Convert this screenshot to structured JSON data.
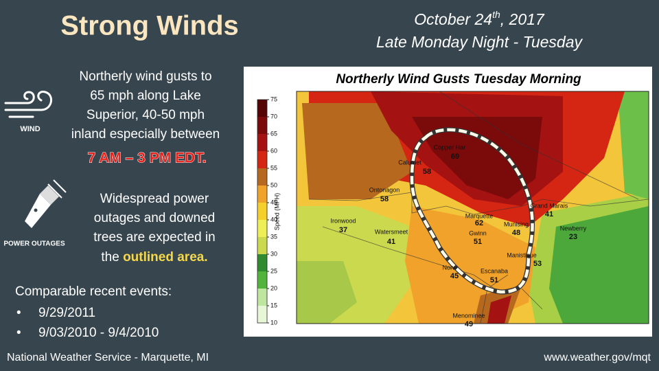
{
  "header": {
    "title": "Strong Winds",
    "date": {
      "main": "October 24",
      "suffix": "th",
      "year": ", 2017"
    },
    "subtitle": "Late Monday Night - Tuesday"
  },
  "wind": {
    "icon_label": "WIND",
    "lines": [
      "Northerly wind gusts to",
      "65 mph along Lake",
      "Superior, 40-50 mph",
      "inland especially between"
    ],
    "highlight": "7 AM – 3 PM EDT."
  },
  "outages": {
    "icon_label": "POWER OUTAGES",
    "lines": [
      "Widespread power",
      "outages and downed",
      "trees are expected in",
      "the "
    ],
    "highlight": "outlined area."
  },
  "events": {
    "heading": "Comparable recent events:",
    "items": [
      "9/29/2011",
      "9/03/2010 - 9/4/2010"
    ]
  },
  "map": {
    "title": "Northerly Wind Gusts Tuesday Morning",
    "colorbar": {
      "label": "Speed (MPH)",
      "ticks": [
        10,
        15,
        20,
        25,
        30,
        35,
        40,
        45,
        50,
        55,
        60,
        65,
        70,
        75
      ],
      "colors": [
        "#e8f6d8",
        "#bfe6a0",
        "#52b43a",
        "#2f8a30",
        "#cbd94e",
        "#eeee55",
        "#f5cf2a",
        "#f0a22a",
        "#b5681e",
        "#d42612",
        "#a51212",
        "#7b0a0a",
        "#560505"
      ]
    },
    "cities": [
      {
        "name": "Copper Har",
        "value": 69
      },
      {
        "name": "Calumet",
        "value": 58
      },
      {
        "name": "Ontonagon",
        "value": 58
      },
      {
        "name": "Ironwood",
        "value": 37
      },
      {
        "name": "Watersmeet",
        "value": 41
      },
      {
        "name": "Marquette",
        "value": 62
      },
      {
        "name": "Gwinn",
        "value": 51
      },
      {
        "name": "Munising",
        "value": 48
      },
      {
        "name": "Grand Marais",
        "value": 41
      },
      {
        "name": "Newberry",
        "value": 23
      },
      {
        "name": "Manistique",
        "value": 53
      },
      {
        "name": "Norw",
        "value": 45
      },
      {
        "name": "Escanaba",
        "value": 51
      },
      {
        "name": "Menominee",
        "value": 49
      }
    ]
  },
  "footer": {
    "left": "National Weather Service - Marquette, MI",
    "right": "www.weather.gov/mqt"
  }
}
